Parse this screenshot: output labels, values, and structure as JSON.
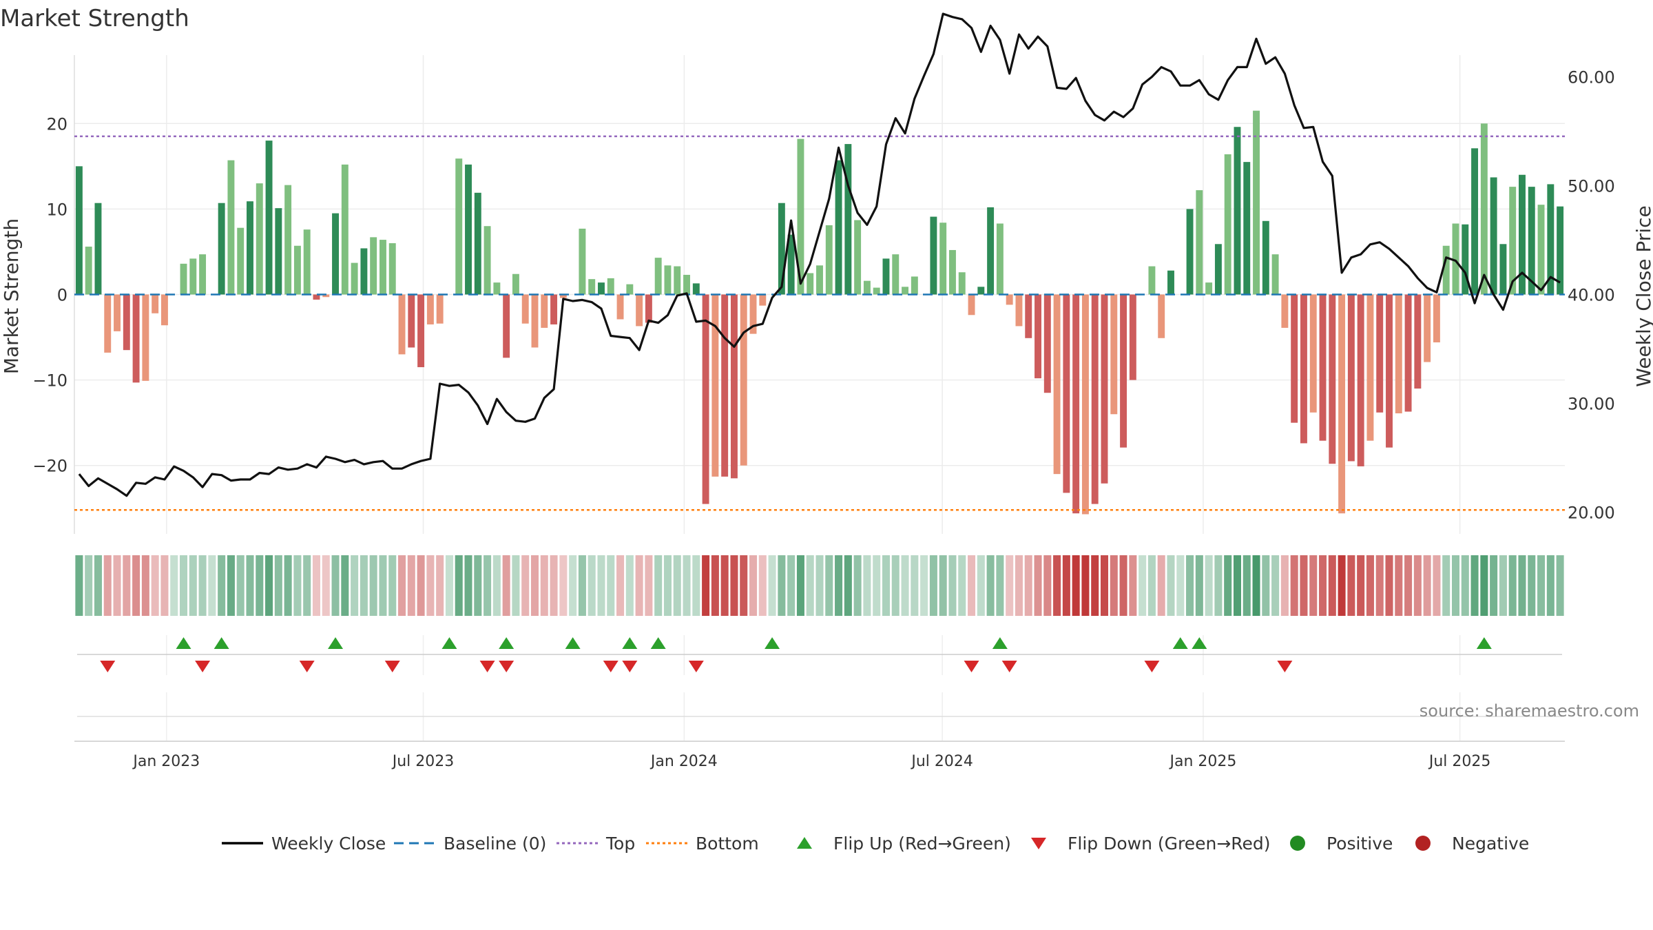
{
  "chart_data": {
    "type": "bar",
    "title": "Market Strength",
    "ylabel": "Market Strength",
    "ylabel_right": "Weekly Close Price",
    "source": "source: sharemaestro.com",
    "ylim": [
      -28,
      28
    ],
    "ylim_right": [
      18,
      62
    ],
    "yticks": [
      20,
      10,
      0,
      -10,
      -20
    ],
    "yticks_right": [
      60,
      50,
      40,
      30,
      20
    ],
    "yticks_right_labels": [
      "60.00",
      "50.00",
      "40.00",
      "30.00",
      "20.00"
    ],
    "top_level": 18.5,
    "bottom_level": -25.2,
    "baseline": 0,
    "x_start": "2022-10-28",
    "x_end": "2025-09-13",
    "xticks": [
      {
        "date": "2023-01-01",
        "label": "Jan 2023"
      },
      {
        "date": "2023-07-01",
        "label": "Jul 2023"
      },
      {
        "date": "2024-01-01",
        "label": "Jan 2024"
      },
      {
        "date": "2024-07-01",
        "label": "Jul 2024"
      },
      {
        "date": "2025-01-01",
        "label": "Jan 2025"
      },
      {
        "date": "2025-07-01",
        "label": "Jul 2025"
      }
    ],
    "strength": [
      15,
      5.6,
      10.7,
      -6.8,
      -4.3,
      -6.5,
      -10.3,
      -10.1,
      -2.2,
      -3.6,
      0,
      3.6,
      4.2,
      4.7,
      0,
      10.7,
      15.7,
      7.8,
      10.9,
      13,
      18,
      10.1,
      12.8,
      5.7,
      7.6,
      -0.6,
      -0.3,
      9.5,
      15.2,
      3.7,
      5.4,
      6.7,
      6.4,
      6,
      -7,
      -6.2,
      -8.5,
      -3.5,
      -3.4,
      0,
      15.9,
      15.2,
      11.9,
      8,
      1.4,
      -7.4,
      2.4,
      -3.4,
      -6.2,
      -3.9,
      -3.5,
      -0.4,
      0,
      7.7,
      1.8,
      1.4,
      1.9,
      -2.9,
      1.2,
      -3.7,
      -3.3,
      4.3,
      3.4,
      3.3,
      2.3,
      1.3,
      -24.5,
      -21.3,
      -21.3,
      -21.5,
      -20,
      -4.6,
      -1.3,
      0,
      10.7,
      7,
      18.2,
      2.5,
      3.4,
      8.1,
      15.7,
      17.6,
      8.7,
      1.6,
      0.8,
      4.2,
      4.7,
      0.9,
      2.1,
      0,
      9.1,
      8.4,
      5.2,
      2.6,
      -2.4,
      0.9,
      10.2,
      8.3,
      -1.2,
      -3.7,
      -5.1,
      -9.8,
      -11.5,
      -21,
      -23.2,
      -25.6,
      -25.7,
      -24.5,
      -22.1,
      -14,
      -17.9,
      -10,
      0,
      3.3,
      -5.1,
      2.8,
      0,
      10,
      12.2,
      1.4,
      5.9,
      16.4,
      19.6,
      15.5,
      21.5,
      8.6,
      4.7,
      -3.9,
      -15,
      -17.4,
      -13.8,
      -17.1,
      -19.8,
      -25.6,
      -19.5,
      -20.1,
      -17.1,
      -13.8,
      -17.9,
      -13.9,
      -13.7,
      -11,
      -7.9,
      -5.6,
      5.7,
      8.3,
      8.2,
      17.1,
      20,
      13.7,
      5.9,
      12.6,
      14,
      12.6,
      10.5,
      12.9,
      10.3
    ],
    "close": [
      23.5,
      22.4,
      23.1,
      22.6,
      22.1,
      21.5,
      22.7,
      22.6,
      23.2,
      23,
      24.2,
      23.8,
      23.2,
      22.3,
      23.5,
      23.4,
      22.9,
      23,
      23,
      23.6,
      23.5,
      24.1,
      23.9,
      24,
      24.4,
      24.1,
      25.1,
      24.9,
      24.6,
      24.8,
      24.4,
      24.6,
      24.7,
      24,
      24,
      24.4,
      24.7,
      24.9,
      31.8,
      31.6,
      31.7,
      31,
      29.8,
      28.1,
      30.4,
      29.2,
      28.4,
      28.3,
      28.6,
      30.5,
      31.3,
      39.6,
      39.4,
      39.5,
      39.3,
      38.7,
      36.2,
      36.1,
      36,
      34.9,
      37.6,
      37.4,
      38.1,
      39.9,
      40.1,
      37.5,
      37.6,
      37.1,
      36,
      35.2,
      36.5,
      37.1,
      37.3,
      39.7,
      40.7,
      46.8,
      41,
      42.8,
      45.8,
      48.8,
      53.5,
      50,
      47.5,
      46.4,
      48.1,
      53.8,
      56.2,
      54.8,
      58,
      60.1,
      62.1,
      65.8,
      65.5,
      65.3,
      64.5,
      62.3,
      64.7,
      63.4,
      60.3,
      63.9,
      62.6,
      63.7,
      62.8,
      59,
      58.9,
      59.9,
      57.8,
      56.5,
      56,
      56.8,
      56.3,
      57.1,
      59.3,
      60,
      60.9,
      60.5,
      59.2,
      59.2,
      59.7,
      58.4,
      57.9,
      59.7,
      60.9,
      60.9,
      63.5,
      61.2,
      61.8,
      60.3,
      57.4,
      55.3,
      55.4,
      52.2,
      50.9,
      42,
      43.4,
      43.7,
      44.6,
      44.8,
      44.2,
      43.4,
      42.6,
      41.5,
      40.6,
      40.2,
      43.4,
      43.1,
      42,
      39.2,
      41.8,
      40,
      38.6,
      41.2,
      42,
      41.2,
      40.4,
      41.6,
      41.1
    ]
  },
  "strength_band": {
    "strong_green": "#2e8b57",
    "light_green": "#7fbf7f",
    "strong_red": "#cd5c5c",
    "light_red": "#e9967a"
  },
  "flip_up_weeks": [
    11,
    15,
    27,
    39,
    45,
    52,
    58,
    61,
    73,
    97,
    116,
    118,
    148
  ],
  "flip_down_weeks": [
    3,
    13,
    24,
    33,
    43,
    45,
    56,
    58,
    65,
    94,
    98,
    113,
    127
  ],
  "legend": [
    {
      "kind": "line",
      "label": "Weekly Close",
      "color": "#000000"
    },
    {
      "kind": "dash",
      "label": "Baseline (0)",
      "color": "#1f77b4"
    },
    {
      "kind": "dot-purple",
      "label": "Top",
      "color": "#9467bd"
    },
    {
      "kind": "dot-orange",
      "label": "Bottom",
      "color": "#ff7f0e"
    },
    {
      "kind": "tri-up",
      "label": "Flip Up (Red→Green)",
      "color": "#2ca02c"
    },
    {
      "kind": "tri-down",
      "label": "Flip Down (Green→Red)",
      "color": "#d62728"
    },
    {
      "kind": "circle-green",
      "label": "Positive",
      "color": "#228b22"
    },
    {
      "kind": "circle-red",
      "label": "Negative",
      "color": "#b22222"
    }
  ]
}
